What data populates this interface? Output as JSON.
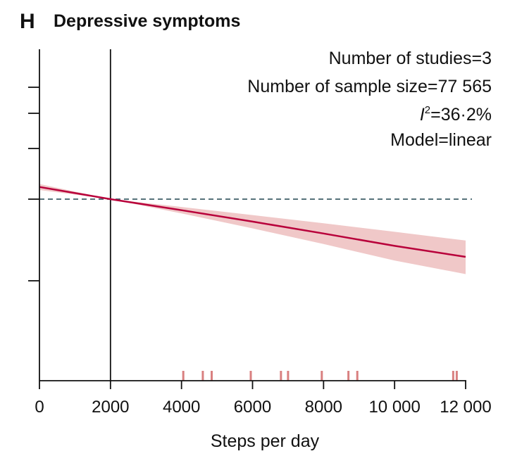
{
  "panel": {
    "letter": "H",
    "title": "Depressive symptoms"
  },
  "stats": {
    "studies": "Number of studies=3",
    "sample": "Number of sample size=77 565",
    "i2_prefix": "I",
    "i2_sup": "2",
    "i2_value": "=36·2%",
    "model": "Model=linear"
  },
  "colors": {
    "line": "#b8003a",
    "band": "#f0c8c8",
    "rug": "#d98080",
    "reference": "#3f5f68",
    "axis": "#111111"
  },
  "chart_data": {
    "type": "line",
    "title": "Depressive symptoms",
    "xlabel": "Steps per day",
    "ylabel": "",
    "xlim": [
      0,
      12000
    ],
    "xticks": [
      0,
      2000,
      4000,
      6000,
      8000,
      10000,
      12000
    ],
    "xtick_labels": [
      "0",
      "2000",
      "4000",
      "6000",
      "8000",
      "10 000",
      "12 000"
    ],
    "y_scale": "log",
    "reference_y": 1.0,
    "vertical_reference_x": 2000,
    "series": [
      {
        "x": [
          0,
          2000,
          4000,
          6000,
          8000,
          10000,
          12000
        ],
        "y": [
          1.04,
          1.0,
          0.965,
          0.93,
          0.895,
          0.86,
          0.83
        ],
        "lower": [
          1.03,
          1.0,
          0.955,
          0.91,
          0.865,
          0.82,
          0.785
        ],
        "upper": [
          1.05,
          1.0,
          0.975,
          0.95,
          0.925,
          0.9,
          0.875
        ]
      }
    ],
    "rug_x": [
      4050,
      4600,
      4850,
      5950,
      6800,
      7000,
      7950,
      8700,
      8950,
      11650,
      11750
    ],
    "grid": false
  }
}
